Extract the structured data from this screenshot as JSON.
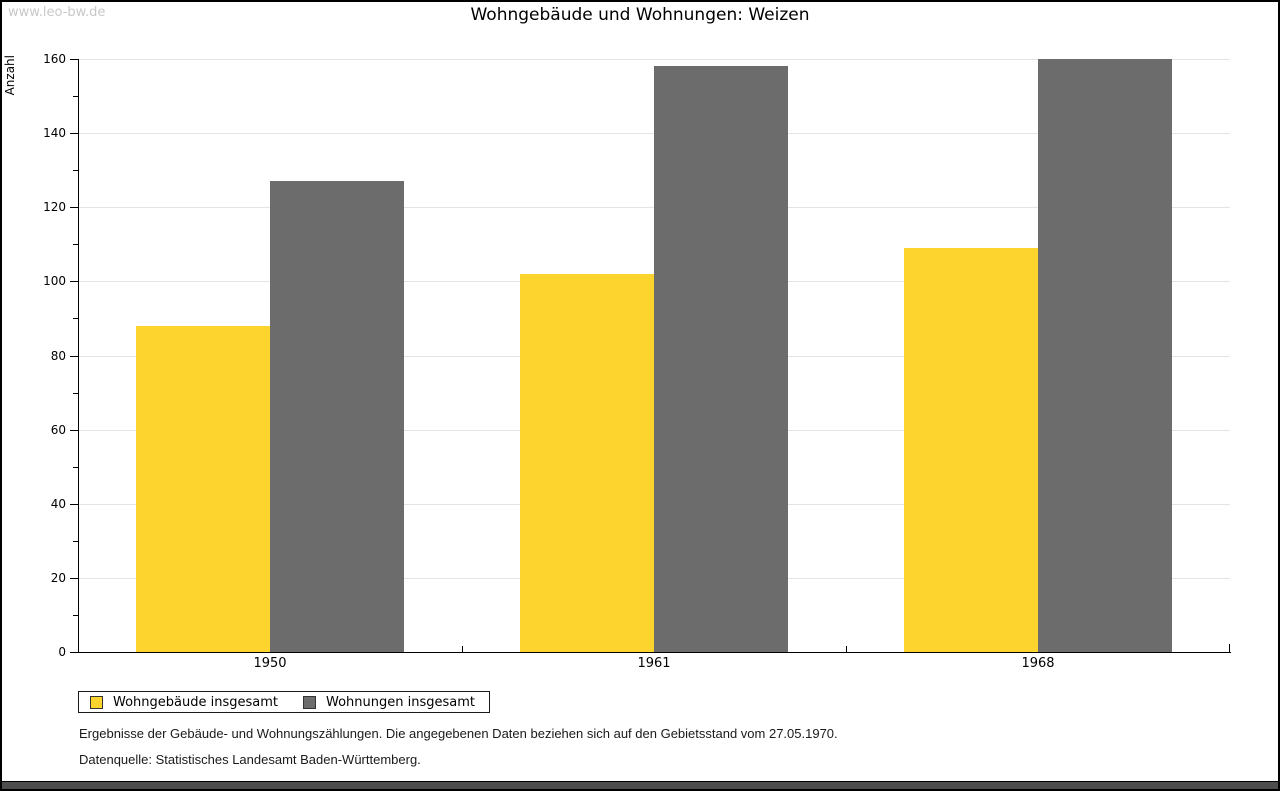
{
  "watermark": "www.leo-bw.de",
  "footer": {
    "line1": "Ergebnisse der Gebäude- und Wohnungszählungen. Die angegebenen Daten beziehen sich auf den Gebietsstand vom 27.05.1970.",
    "line2": "Datenquelle: Statistisches Landesamt Baden-Württemberg."
  },
  "chart_data": {
    "type": "bar",
    "title": "Wohngebäude und Wohnungen: Weizen",
    "ylabel": "Anzahl",
    "xlabel": "",
    "categories": [
      "1950",
      "1961",
      "1968"
    ],
    "series": [
      {
        "name": "Wohngebäude insgesamt",
        "color": "#FDD32D",
        "values": [
          88,
          102,
          109
        ]
      },
      {
        "name": "Wohnungen insgesamt",
        "color": "#6C6C6C",
        "values": [
          127,
          158,
          160
        ]
      }
    ],
    "ylim": [
      0,
      160
    ],
    "ytick_step": 20,
    "ytick_minor_step": 10,
    "grid": "horizontal",
    "legend_position": "bottom-left",
    "colors": {
      "gridline": "#E4E4E4",
      "axis": "#000000",
      "watermark": "#C8C8C8"
    }
  }
}
